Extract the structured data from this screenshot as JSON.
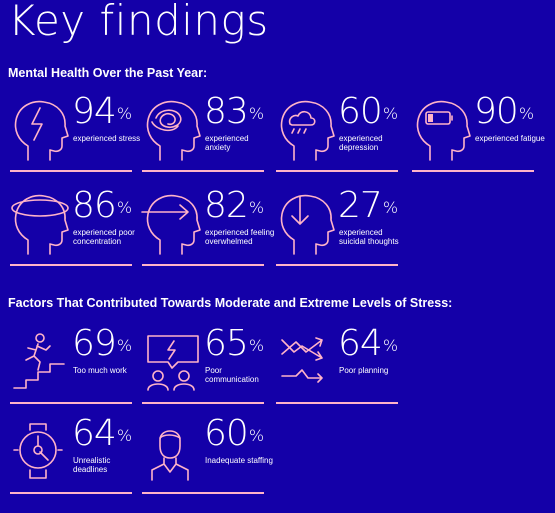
{
  "title": "Key findings",
  "section1": {
    "heading": "Mental Health Over the Past Year:",
    "stats": [
      {
        "value": "94",
        "unit": "%",
        "label": "experienced stress",
        "icon": "head-lightning-icon"
      },
      {
        "value": "83",
        "unit": "%",
        "label": "experienced anxiety",
        "icon": "head-scribble-icon"
      },
      {
        "value": "60",
        "unit": "%",
        "label": "experienced depression",
        "icon": "head-raincloud-icon"
      },
      {
        "value": "90",
        "unit": "%",
        "label": "experienced fatigue",
        "icon": "head-low-battery-icon"
      },
      {
        "value": "86",
        "unit": "%",
        "label": "experienced poor concentration",
        "icon": "head-orbit-icon"
      },
      {
        "value": "82",
        "unit": "%",
        "label": "experienced feeling overwhelmed",
        "icon": "head-arrow-icon"
      },
      {
        "value": "27",
        "unit": "%",
        "label": "experienced suicidal thoughts",
        "icon": "head-down-arrow-icon"
      }
    ]
  },
  "section2": {
    "heading": "Factors That Contributed Towards Moderate and Extreme Levels of Stress:",
    "stats": [
      {
        "value": "69",
        "unit": "%",
        "label": "Too much work",
        "icon": "running-stairs-icon"
      },
      {
        "value": "65",
        "unit": "%",
        "label": "Poor communication",
        "icon": "people-speech-bubble-icon"
      },
      {
        "value": "64",
        "unit": "%",
        "label": "Poor planning",
        "icon": "crossed-arrows-icon"
      },
      {
        "value": "64",
        "unit": "%",
        "label": "Unrealistic deadlines",
        "icon": "clock-icon"
      },
      {
        "value": "60",
        "unit": "%",
        "label": "Inadequate staffing",
        "icon": "person-bust-icon"
      }
    ]
  },
  "colors": {
    "background": "#1400a8",
    "accent": "#ffb3c8",
    "text": "#ffffff"
  }
}
